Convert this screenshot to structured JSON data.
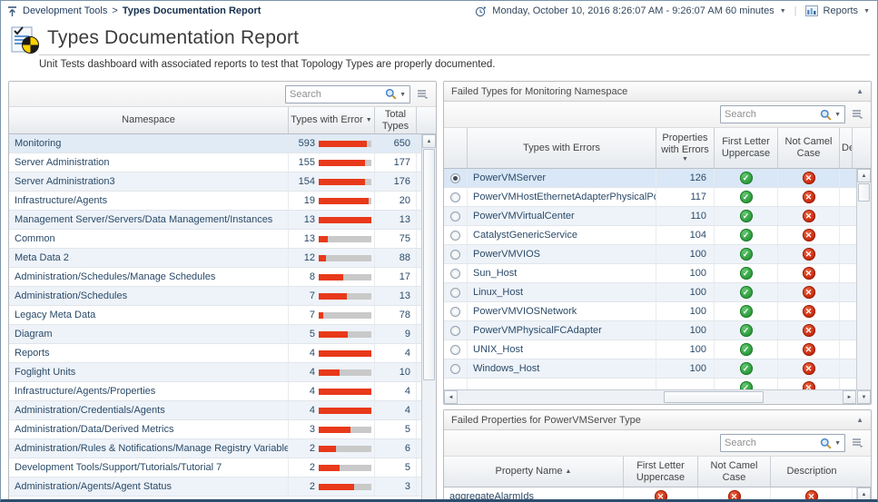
{
  "icons": {
    "sort_desc": "▼",
    "sort_asc": "▲",
    "collapse_up": "▲",
    "dropdown_arrow": "▼",
    "scroll_up": "▲",
    "scroll_down": "▼",
    "scroll_left": "◄",
    "scroll_right": "►",
    "pass": "✓",
    "fail": "✕",
    "separator": "|"
  },
  "colors": {
    "bar_red": "#e8391a",
    "bar_track": "#c9c9c9",
    "pass_green": "#2f9e3f",
    "fail_red": "#cc2b0d"
  },
  "topbar": {
    "breadcrumb": {
      "parent": "Development Tools",
      "separator": ">",
      "current": "Types Documentation Report"
    },
    "time_range": "Monday, October 10, 2016 8:26:07 AM - 9:26:07 AM 60 minutes",
    "reports_label": "Reports"
  },
  "header": {
    "title": "Types Documentation Report",
    "subtitle": "Unit Tests dashboard with associated reports to test that Topology Types are properly documented."
  },
  "namespace_panel": {
    "search": {
      "placeholder": "Search"
    },
    "columns": {
      "namespace": "Namespace",
      "types_with_error": "Types with Error",
      "total_types": "Total Types"
    },
    "sort": {
      "column": "types_with_error",
      "direction": "desc"
    },
    "rows": [
      {
        "namespace": "Monitoring",
        "types_with_error": 593,
        "total_types": 650
      },
      {
        "namespace": "Server Administration",
        "types_with_error": 155,
        "total_types": 177
      },
      {
        "namespace": "Server Administration3",
        "types_with_error": 154,
        "total_types": 176
      },
      {
        "namespace": "Infrastructure/Agents",
        "types_with_error": 19,
        "total_types": 20
      },
      {
        "namespace": "Management Server/Servers/Data Management/Instances",
        "types_with_error": 13,
        "total_types": 13
      },
      {
        "namespace": "Common",
        "types_with_error": 13,
        "total_types": 75
      },
      {
        "namespace": "Meta Data 2",
        "types_with_error": 12,
        "total_types": 88
      },
      {
        "namespace": "Administration/Schedules/Manage Schedules",
        "types_with_error": 8,
        "total_types": 17
      },
      {
        "namespace": "Administration/Schedules",
        "types_with_error": 7,
        "total_types": 13
      },
      {
        "namespace": "Legacy Meta Data",
        "types_with_error": 7,
        "total_types": 78
      },
      {
        "namespace": "Diagram",
        "types_with_error": 5,
        "total_types": 9
      },
      {
        "namespace": "Reports",
        "types_with_error": 4,
        "total_types": 4
      },
      {
        "namespace": "Foglight Units",
        "types_with_error": 4,
        "total_types": 10
      },
      {
        "namespace": "Infrastructure/Agents/Properties",
        "types_with_error": 4,
        "total_types": 4
      },
      {
        "namespace": "Administration/Credentials/Agents",
        "types_with_error": 4,
        "total_types": 4
      },
      {
        "namespace": "Administration/Data/Derived Metrics",
        "types_with_error": 3,
        "total_types": 5
      },
      {
        "namespace": "Administration/Rules & Notifications/Manage Registry Variables",
        "types_with_error": 2,
        "total_types": 6
      },
      {
        "namespace": "Development Tools/Support/Tutorials/Tutorial 7",
        "types_with_error": 2,
        "total_types": 5
      },
      {
        "namespace": "Administration/Agents/Agent Status",
        "types_with_error": 2,
        "total_types": 3
      }
    ]
  },
  "failed_types_panel": {
    "title": "Failed Types for Monitoring Namespace",
    "search": {
      "placeholder": "Search"
    },
    "columns": {
      "types_with_errors": "Types with Errors",
      "properties_with_errors": "Properties with Errors",
      "first_letter_uppercase": "First Letter Uppercase",
      "not_camel_case": "Not Camel Case",
      "description": "Description"
    },
    "sort": {
      "column": "properties_with_errors",
      "direction": "desc"
    },
    "rows": [
      {
        "type": "PowerVMServer",
        "properties_with_errors": 126,
        "first_letter_uppercase": "pass",
        "not_camel_case": "fail",
        "selected": true
      },
      {
        "type": "PowerVMHostEthernetAdapterPhysicalPort",
        "properties_with_errors": 117,
        "first_letter_uppercase": "pass",
        "not_camel_case": "fail",
        "selected": false
      },
      {
        "type": "PowerVMVirtualCenter",
        "properties_with_errors": 110,
        "first_letter_uppercase": "pass",
        "not_camel_case": "fail",
        "selected": false
      },
      {
        "type": "CatalystGenericService",
        "properties_with_errors": 104,
        "first_letter_uppercase": "pass",
        "not_camel_case": "fail",
        "selected": false
      },
      {
        "type": "PowerVMVIOS",
        "properties_with_errors": 100,
        "first_letter_uppercase": "pass",
        "not_camel_case": "fail",
        "selected": false
      },
      {
        "type": "Sun_Host",
        "properties_with_errors": 100,
        "first_letter_uppercase": "pass",
        "not_camel_case": "fail",
        "selected": false
      },
      {
        "type": "Linux_Host",
        "properties_with_errors": 100,
        "first_letter_uppercase": "pass",
        "not_camel_case": "fail",
        "selected": false
      },
      {
        "type": "PowerVMVIOSNetwork",
        "properties_with_errors": 100,
        "first_letter_uppercase": "pass",
        "not_camel_case": "fail",
        "selected": false
      },
      {
        "type": "PowerVMPhysicalFCAdapter",
        "properties_with_errors": 100,
        "first_letter_uppercase": "pass",
        "not_camel_case": "fail",
        "selected": false
      },
      {
        "type": "UNIX_Host",
        "properties_with_errors": 100,
        "first_letter_uppercase": "pass",
        "not_camel_case": "fail",
        "selected": false
      },
      {
        "type": "Windows_Host",
        "properties_with_errors": 100,
        "first_letter_uppercase": "pass",
        "not_camel_case": "fail",
        "selected": false
      }
    ],
    "partial_row": {
      "first_letter_uppercase": "pass",
      "not_camel_case": "fail"
    }
  },
  "failed_properties_panel": {
    "title": "Failed Properties for PowerVMServer Type",
    "search": {
      "placeholder": "Search"
    },
    "columns": {
      "property_name": "Property Name",
      "first_letter_uppercase": "First Letter Uppercase",
      "not_camel_case": "Not Camel Case",
      "description": "Description"
    },
    "sort": {
      "column": "property_name",
      "direction": "asc"
    },
    "rows": [
      {
        "property_name": "aggregateAlarmIds",
        "first_letter_uppercase": "fail",
        "not_camel_case": "fail",
        "description": "fail"
      }
    ]
  }
}
